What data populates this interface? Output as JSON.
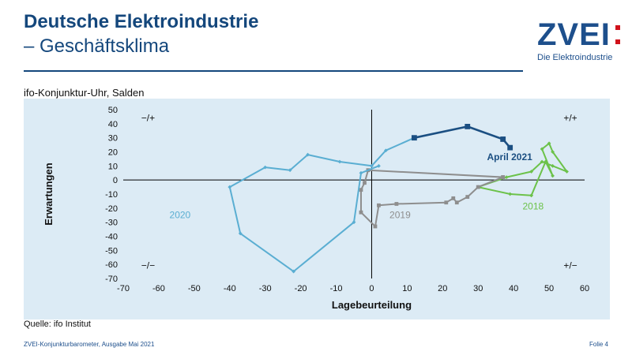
{
  "header": {
    "title": "Deutsche Elektroindustrie",
    "subtitle": "– Geschäftsklima",
    "logo_text": "ZVEI",
    "logo_tagline": "Die Elektroindustrie"
  },
  "chart_caption": "ifo-Konjunktur-Uhr, Salden",
  "source": "Quelle: ifo Institut",
  "footer": {
    "left": "ZVEI-Konjunkturbarometer, Ausgabe Mai 2021",
    "right": "Folie 4"
  },
  "colors": {
    "brand": "#14477c",
    "chart_bg": "#dcebf5",
    "s2018": "#6cc24a",
    "s2019": "#8e8e8e",
    "s2020": "#5aaed2",
    "s2021": "#1b4f82"
  },
  "chart_data": {
    "type": "scatter",
    "xlabel": "Lagebeurteilung",
    "ylabel": "Erwartungen",
    "xlim": [
      -70,
      60
    ],
    "ylim": [
      -70,
      50
    ],
    "xticks": [
      -70,
      -60,
      -50,
      -40,
      -30,
      -20,
      -10,
      0,
      10,
      20,
      30,
      40,
      50,
      60
    ],
    "yticks": [
      50,
      40,
      30,
      20,
      10,
      0,
      -10,
      -20,
      -30,
      -40,
      -50,
      -60,
      -70
    ],
    "quadrant_labels": {
      "top_left": "−/+",
      "top_right": "+/+",
      "bottom_left": "−/−",
      "bottom_right": "+/−"
    },
    "annotations": [
      "April 2021",
      "2018",
      "2019",
      "2020"
    ],
    "series": [
      {
        "name": "2018",
        "marker": "diamond",
        "points": [
          [
            45,
            -11
          ],
          [
            39,
            -10
          ],
          [
            30,
            -5
          ],
          [
            38,
            2
          ],
          [
            45,
            6
          ],
          [
            48,
            13
          ],
          [
            51,
            10
          ],
          [
            55,
            6
          ],
          [
            51,
            20
          ],
          [
            50,
            26
          ],
          [
            48,
            22
          ],
          [
            51,
            3
          ],
          [
            49,
            13
          ],
          [
            45,
            -11
          ]
        ]
      },
      {
        "name": "2019",
        "marker": "square",
        "points": [
          [
            37,
            2
          ],
          [
            30,
            -5
          ],
          [
            27,
            -12
          ],
          [
            24,
            -16
          ],
          [
            23,
            -13
          ],
          [
            21,
            -16
          ],
          [
            7,
            -17
          ],
          [
            2,
            -18
          ],
          [
            1,
            -33
          ],
          [
            -3,
            -23
          ],
          [
            -3,
            -7
          ],
          [
            -2,
            -2
          ],
          [
            -1,
            7
          ],
          [
            37,
            2
          ]
        ]
      },
      {
        "name": "2020",
        "marker": "diamond",
        "points": [
          [
            2,
            10
          ],
          [
            -3,
            5
          ],
          [
            -5,
            -30
          ],
          [
            -22,
            -65
          ],
          [
            -37,
            -38
          ],
          [
            -40,
            -5
          ],
          [
            -30,
            9
          ],
          [
            -23,
            7
          ],
          [
            -18,
            18
          ],
          [
            -9,
            13
          ],
          [
            0,
            10
          ],
          [
            4,
            21
          ],
          [
            12,
            30
          ]
        ]
      },
      {
        "name": "2021",
        "marker": "square",
        "points": [
          [
            12,
            30
          ],
          [
            27,
            38
          ],
          [
            37,
            29
          ],
          [
            39,
            23
          ]
        ]
      }
    ]
  }
}
